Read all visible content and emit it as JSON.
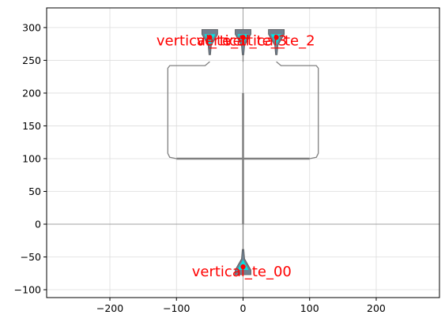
{
  "chart_data": {
    "type": "scatter",
    "title": "",
    "xlabel": "",
    "ylabel": "",
    "xlim": [
      -295,
      295
    ],
    "ylim": [
      -112,
      330
    ],
    "xticks": [
      -200,
      -100,
      0,
      100,
      200
    ],
    "yticks": [
      -100,
      -50,
      0,
      50,
      100,
      150,
      200,
      250,
      300
    ],
    "grid": true,
    "reference_lines": {
      "x": 0,
      "y": 0
    },
    "colors": {
      "waveguide": "#808080",
      "grating_body": "#708090",
      "grating_core": "#00e5e5",
      "text": "#ff0000",
      "grid": "#dddddd",
      "axis_line": "#a0a0a0"
    },
    "components": [
      {
        "name": "vertical_te_00",
        "x": 0,
        "y": -65,
        "orientation": "up"
      },
      {
        "name": "vertical_te_1",
        "x": -50,
        "y": 285,
        "orientation": "down"
      },
      {
        "name": "vertical_te_2",
        "x": 0,
        "y": 285,
        "orientation": "down"
      },
      {
        "name": "vertical_te_3",
        "x": 50,
        "y": 285,
        "orientation": "down"
      }
    ],
    "paths": [
      {
        "name": "trunk",
        "points": [
          [
            0,
            200
          ],
          [
            0,
            0
          ]
        ]
      },
      {
        "name": "stem-lower",
        "points": [
          [
            0,
            0
          ],
          [
            0,
            -38
          ]
        ]
      },
      {
        "name": "stem-upper",
        "points": [
          [
            0,
            248
          ],
          [
            0,
            267
          ]
        ]
      },
      {
        "name": "crossbar",
        "points": [
          [
            -100,
            100
          ],
          [
            100,
            100
          ]
        ]
      },
      {
        "name": "left-loop",
        "points": [
          [
            -50,
            248
          ],
          [
            -57,
            242
          ],
          [
            -110,
            242
          ],
          [
            -113,
            238
          ],
          [
            -113,
            108
          ],
          [
            -110,
            102
          ],
          [
            -100,
            100
          ]
        ]
      },
      {
        "name": "right-loop",
        "points": [
          [
            50,
            248
          ],
          [
            57,
            242
          ],
          [
            110,
            242
          ],
          [
            113,
            238
          ],
          [
            113,
            108
          ],
          [
            110,
            102
          ],
          [
            100,
            100
          ]
        ]
      }
    ],
    "labels": [
      {
        "text": "vertical_te_1",
        "x": -62,
        "y": 280
      },
      {
        "text": "vertical_te_3",
        "x": -2,
        "y": 280
      },
      {
        "text": "vertical_te_2",
        "x": 40,
        "y": 280
      },
      {
        "text": "vertical_te_00",
        "x": -2,
        "y": -72
      }
    ]
  }
}
